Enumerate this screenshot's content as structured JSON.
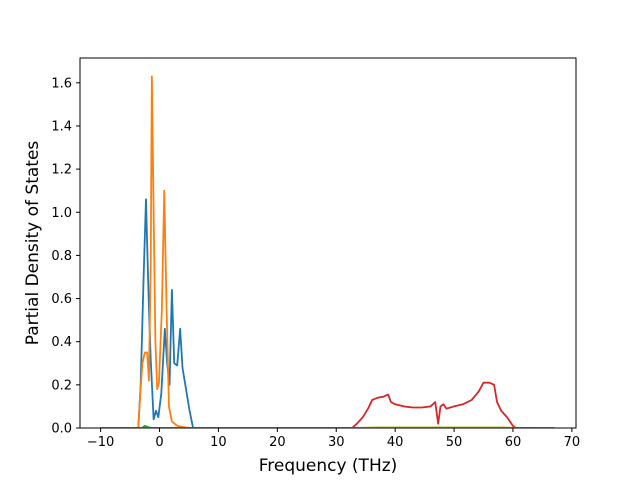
{
  "chart_data": {
    "type": "line",
    "title": "",
    "xlabel": "Frequency (THz)",
    "ylabel": "Partial Density of States",
    "xlim": [
      -13.5,
      70.7
    ],
    "ylim": [
      0,
      1.715
    ],
    "grid": false,
    "legend": "none",
    "x_ticks": [
      -10,
      0,
      10,
      20,
      30,
      40,
      50,
      60,
      70
    ],
    "y_ticks": [
      0.0,
      0.2,
      0.4,
      0.6,
      0.8,
      1.0,
      1.2,
      1.4,
      1.6
    ],
    "x_tick_labels": [
      "−10",
      "0",
      "10",
      "20",
      "30",
      "40",
      "50",
      "60",
      "70"
    ],
    "y_tick_labels": [
      "0.0",
      "0.2",
      "0.4",
      "0.6",
      "0.8",
      "1.0",
      "1.2",
      "1.4",
      "1.6"
    ],
    "series": [
      {
        "color": "#1f77b4",
        "points": [
          [
            -10,
            0
          ],
          [
            -3.6,
            0
          ],
          [
            -3.2,
            0.2
          ],
          [
            -2.7,
            0.7
          ],
          [
            -2.3,
            1.06
          ],
          [
            -1.9,
            0.65
          ],
          [
            -1.5,
            0.32
          ],
          [
            -1.0,
            0.04
          ],
          [
            -0.6,
            0.08
          ],
          [
            -0.2,
            0.05
          ],
          [
            0.3,
            0.16
          ],
          [
            0.9,
            0.46
          ],
          [
            1.3,
            0.3
          ],
          [
            1.7,
            0.2
          ],
          [
            2.1,
            0.64
          ],
          [
            2.5,
            0.3
          ],
          [
            3.0,
            0.29
          ],
          [
            3.5,
            0.46
          ],
          [
            3.9,
            0.28
          ],
          [
            4.5,
            0.18
          ],
          [
            5.1,
            0.08
          ],
          [
            5.7,
            0
          ],
          [
            67,
            0
          ]
        ]
      },
      {
        "color": "#ff7f0e",
        "points": [
          [
            -10,
            0
          ],
          [
            -3.6,
            0
          ],
          [
            -3.3,
            0.15
          ],
          [
            -2.9,
            0.3
          ],
          [
            -2.5,
            0.35
          ],
          [
            -2.1,
            0.35
          ],
          [
            -1.8,
            0.22
          ],
          [
            -1.5,
            0.75
          ],
          [
            -1.3,
            1.63
          ],
          [
            -1.0,
            1.0
          ],
          [
            -0.7,
            0.4
          ],
          [
            -0.4,
            0.18
          ],
          [
            -0.1,
            0.21
          ],
          [
            0.4,
            0.55
          ],
          [
            0.8,
            1.1
          ],
          [
            1.2,
            0.55
          ],
          [
            1.6,
            0.1
          ],
          [
            2.1,
            0.03
          ],
          [
            3.0,
            0.01
          ],
          [
            5.0,
            0
          ],
          [
            67,
            0
          ]
        ]
      },
      {
        "color": "#2ca02c",
        "points": [
          [
            -10,
            0
          ],
          [
            -3.0,
            0
          ],
          [
            -2.5,
            0.01
          ],
          [
            -1.5,
            0
          ],
          [
            67,
            0
          ]
        ]
      },
      {
        "color": "#d62728",
        "points": [
          [
            -10,
            0
          ],
          [
            32.7,
            0
          ],
          [
            33.5,
            0.02
          ],
          [
            34.5,
            0.05
          ],
          [
            35.4,
            0.09
          ],
          [
            36.1,
            0.13
          ],
          [
            37.0,
            0.14
          ],
          [
            38.0,
            0.145
          ],
          [
            38.8,
            0.155
          ],
          [
            39.3,
            0.12
          ],
          [
            40.0,
            0.11
          ],
          [
            41.5,
            0.1
          ],
          [
            43.0,
            0.095
          ],
          [
            44.5,
            0.095
          ],
          [
            46.0,
            0.1
          ],
          [
            46.8,
            0.12
          ],
          [
            47.3,
            0.02
          ],
          [
            47.7,
            0.1
          ],
          [
            48.2,
            0.11
          ],
          [
            48.7,
            0.09
          ],
          [
            50.0,
            0.1
          ],
          [
            51.5,
            0.11
          ],
          [
            53.0,
            0.13
          ],
          [
            54.2,
            0.17
          ],
          [
            55.0,
            0.21
          ],
          [
            56.0,
            0.21
          ],
          [
            56.8,
            0.2
          ],
          [
            57.3,
            0.12
          ],
          [
            58.0,
            0.08
          ],
          [
            59.0,
            0.05
          ],
          [
            60.0,
            0.01
          ],
          [
            60.5,
            0
          ],
          [
            67,
            0
          ]
        ]
      },
      {
        "color": "#bcbd22",
        "points": [
          [
            -10,
            0
          ],
          [
            33,
            0
          ],
          [
            37,
            0.003
          ],
          [
            45,
            0.003
          ],
          [
            52,
            0.003
          ],
          [
            58,
            0.003
          ],
          [
            61,
            0
          ],
          [
            67,
            0
          ]
        ]
      }
    ]
  }
}
